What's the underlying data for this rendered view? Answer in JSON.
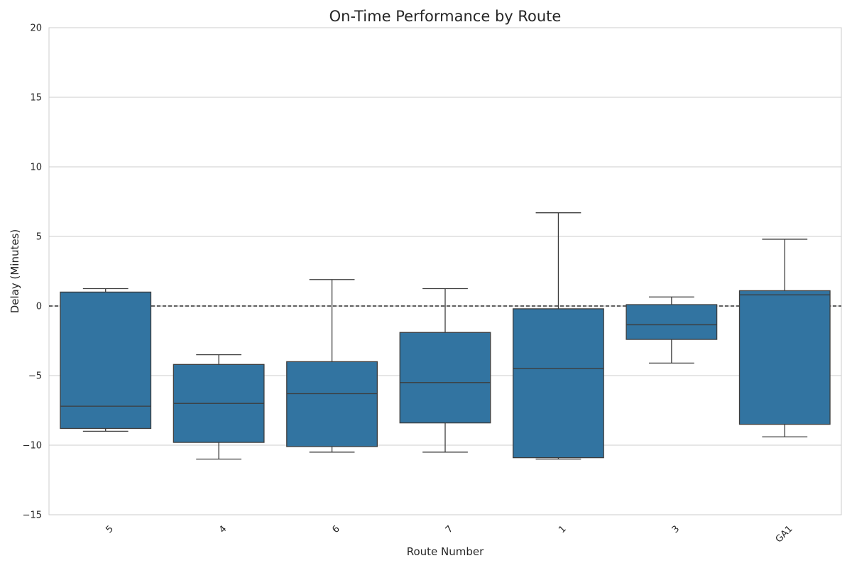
{
  "chart_data": {
    "type": "box",
    "title": "On-Time Performance by Route",
    "xlabel": "Route Number",
    "ylabel": "Delay (Minutes)",
    "ylim": [
      -15,
      20
    ],
    "yticks": [
      -15,
      -10,
      -5,
      0,
      5,
      10,
      15,
      20
    ],
    "ytick_labels": [
      "−15",
      "−10",
      "−5",
      "0",
      "5",
      "10",
      "15",
      "20"
    ],
    "grid": true,
    "reference_line": {
      "y": 0,
      "style": "dashed",
      "color": "#000000"
    },
    "box_color": "#3274a1",
    "edge_color": "#3d3d3d",
    "categories": [
      "5",
      "4",
      "6",
      "7",
      "1",
      "3",
      "GA1"
    ],
    "boxes": [
      {
        "category": "5",
        "whisker_low": -9.0,
        "q1": -8.8,
        "median": -7.2,
        "q3": 1.0,
        "whisker_high": 1.25
      },
      {
        "category": "4",
        "whisker_low": -11.0,
        "q1": -9.8,
        "median": -7.0,
        "q3": -4.2,
        "whisker_high": -3.5
      },
      {
        "category": "6",
        "whisker_low": -10.5,
        "q1": -10.1,
        "median": -6.3,
        "q3": -4.0,
        "whisker_high": 1.9
      },
      {
        "category": "7",
        "whisker_low": -10.5,
        "q1": -8.4,
        "median": -5.5,
        "q3": -1.9,
        "whisker_high": 1.25
      },
      {
        "category": "1",
        "whisker_low": -11.0,
        "q1": -10.9,
        "median": -4.5,
        "q3": -0.2,
        "whisker_high": 6.7
      },
      {
        "category": "3",
        "whisker_low": -4.1,
        "q1": -2.4,
        "median": -1.35,
        "q3": 0.1,
        "whisker_high": 0.65
      },
      {
        "category": "GA1",
        "whisker_low": -9.4,
        "q1": -8.5,
        "median": 0.8,
        "q3": 1.1,
        "whisker_high": 4.8
      }
    ]
  }
}
